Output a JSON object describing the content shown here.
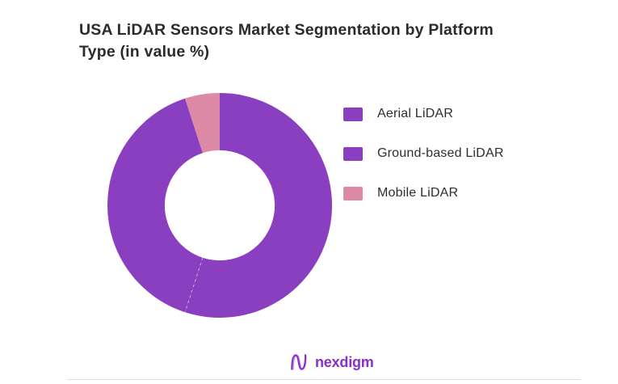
{
  "title": {
    "text": "USA LiDAR Sensors Market Segmentation by Platform Type (in value %)",
    "lines": [
      "USA LiDAR Sensors Market Segmentation by Platform",
      "Type (in value %)"
    ]
  },
  "chart_data": {
    "type": "pie",
    "subtype": "donut",
    "title": "USA LiDAR Sensors Market Segmentation by Platform Type (in value %)",
    "categories": [
      "Aerial LiDAR",
      "Ground-based LiDAR",
      "Mobile LiDAR"
    ],
    "values": [
      55,
      40,
      5
    ],
    "unit": "value %",
    "colors": [
      "#8a3fc1",
      "#8a3fc1",
      "#dd8aa6"
    ],
    "legend_position": "right",
    "start_angle_deg": 0,
    "direction": "clockwise",
    "inner_radius_ratio": 0.49,
    "data_labels_shown": false,
    "separator_style": {
      "color": "#ffffff",
      "opacity": 0.55,
      "dash": "3 4"
    }
  },
  "legend": {
    "items": [
      {
        "label": "Aerial LiDAR",
        "color": "#8a3fc1"
      },
      {
        "label": "Ground-based LiDAR",
        "color": "#8a3fc1"
      },
      {
        "label": "Mobile LiDAR",
        "color": "#dd8aa6"
      }
    ]
  },
  "footer": {
    "brand": "nexdigm",
    "brand_color": "#8b2fc5"
  }
}
